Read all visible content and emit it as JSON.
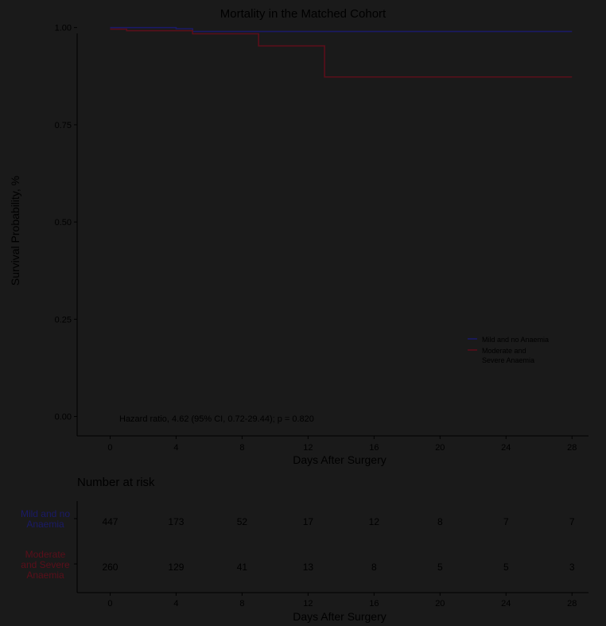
{
  "chart_data": {
    "type": "line",
    "title": "Mortality in the Matched Cohort",
    "xlabel": "Days After Surgery",
    "ylabel": "Survival Probability, %",
    "xlim": [
      -2,
      29
    ],
    "ylim": [
      -0.05,
      1.03
    ],
    "x_ticks": [
      0,
      4,
      8,
      12,
      16,
      20,
      24,
      28
    ],
    "y_ticks": [
      0.0,
      0.25,
      0.5,
      0.75,
      1.0
    ],
    "y_tick_labels": [
      "0.00",
      "0.25",
      "0.50",
      "0.75",
      "1.00"
    ],
    "grid": false,
    "legend_position": "bottom-right",
    "annotation": "Hazard ratio, 4.62 (95% CI, 0.72-29.44); p = 0.820",
    "series": [
      {
        "name": "Mild and no Anaemia",
        "color": "#1a1a66",
        "steps": [
          [
            0,
            1.0
          ],
          [
            4,
            0.997
          ],
          [
            5,
            0.99
          ],
          [
            28,
            0.99
          ]
        ]
      },
      {
        "name": "Moderate and Severe Anaemia",
        "color": "#5a0f1a",
        "legend_lines": [
          "Moderate and",
          "Severe Anaemia"
        ],
        "steps": [
          [
            0,
            0.996
          ],
          [
            1,
            0.992
          ],
          [
            5,
            0.984
          ],
          [
            9,
            0.953
          ],
          [
            13,
            0.873
          ],
          [
            28,
            0.873
          ]
        ]
      }
    ],
    "risk_table": {
      "title": "Number at risk",
      "xlabel": "Days After Surgery",
      "rows": [
        {
          "label_lines": [
            "Mild and no",
            "Anaemia"
          ],
          "color": "#1a1a66",
          "counts": [
            447,
            173,
            52,
            17,
            12,
            8,
            7,
            7
          ]
        },
        {
          "label_lines": [
            "Moderate",
            "and Severe",
            "Anaemia"
          ],
          "color": "#5a0f1a",
          "counts": [
            260,
            129,
            41,
            13,
            8,
            5,
            5,
            3
          ]
        }
      ]
    }
  }
}
